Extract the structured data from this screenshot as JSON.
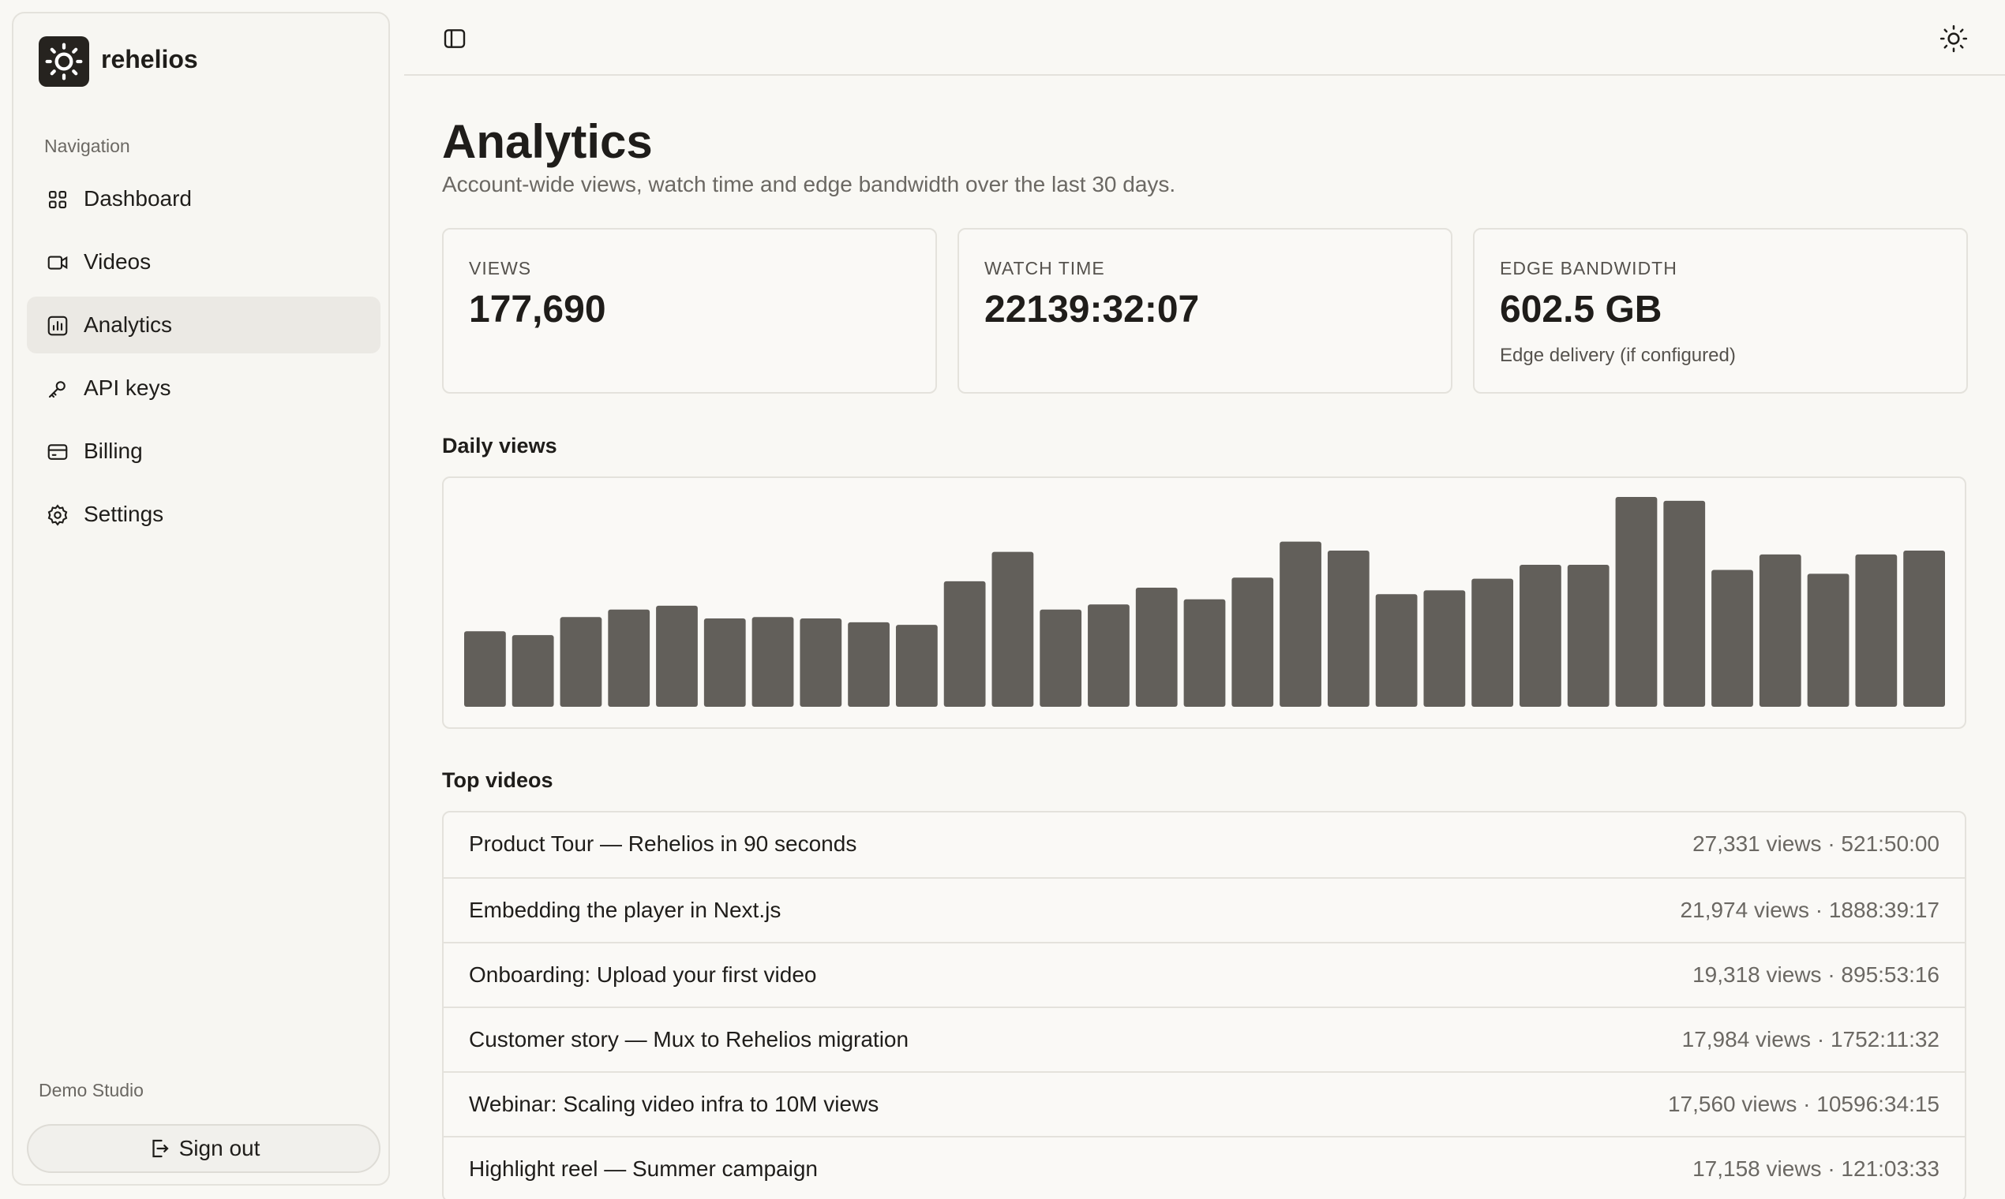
{
  "sidebar": {
    "brand": "rehelios",
    "nav_title": "Navigation",
    "nav": [
      "Dashboard",
      "Videos",
      "Analytics",
      "API keys",
      "Billing",
      "Settings"
    ],
    "workspace": "Demo Studio",
    "sign_out": "Sign out"
  },
  "header": {
    "title": "Analytics",
    "subtitle": "Account-wide views, watch time and edge bandwidth over the last 30 days."
  },
  "stats": [
    {
      "label": "VIEWS",
      "value": "177,690"
    },
    {
      "label": "WATCH TIME",
      "value": "22139:32:07"
    },
    {
      "label": "EDGE BANDWIDTH",
      "value": "602.5 GB",
      "note": "Edge delivery (if configured)"
    }
  ],
  "chart_data": {
    "type": "bar",
    "title": "Daily views",
    "color": "#625f5a",
    "values": [
      3520,
      3340,
      4180,
      4530,
      4710,
      4120,
      4180,
      4120,
      3940,
      3820,
      5850,
      7220,
      4530,
      4770,
      5550,
      5010,
      6020,
      7700,
      7280,
      5250,
      5430,
      5970,
      6620,
      6620,
      9780,
      9600,
      6380,
      7100,
      6200,
      7100,
      7280
    ]
  },
  "top_videos": {
    "title": "Top videos",
    "rows": [
      {
        "title": "Product Tour — Rehelios in 90 seconds",
        "meta": "27,331 views · 521:50:00"
      },
      {
        "title": "Embedding the player in Next.js",
        "meta": "21,974 views · 1888:39:17"
      },
      {
        "title": "Onboarding: Upload your first video",
        "meta": "19,318 views · 895:53:16"
      },
      {
        "title": "Customer story — Mux to Rehelios migration",
        "meta": "17,984 views · 1752:11:32"
      },
      {
        "title": "Webinar: Scaling video infra to 10M views",
        "meta": "17,560 views · 10596:34:15"
      },
      {
        "title": "Highlight reel — Summer campaign",
        "meta": "17,158 views · 121:03:33"
      }
    ]
  }
}
